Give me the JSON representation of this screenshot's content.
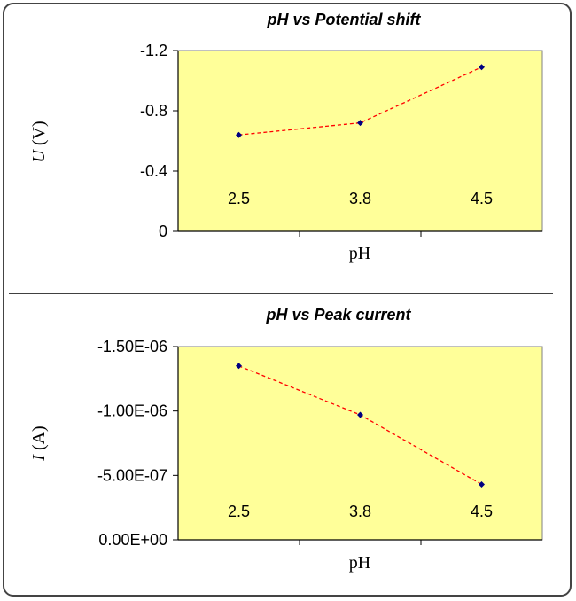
{
  "chart_data": [
    {
      "type": "line",
      "title": "pH vs Potential shift",
      "categories": [
        "2.5",
        "3.8",
        "4.5"
      ],
      "values": [
        -0.64,
        -0.72,
        -1.09
      ],
      "ylabel_symbol": "U",
      "ylabel_unit": " (V)",
      "xlabel": "pH",
      "ylim": [
        0,
        -1.2
      ],
      "y_axis_reversed": true,
      "yticks": [
        "-1.2",
        "-0.8",
        "-0.4",
        "0"
      ],
      "ytick_values": [
        -1.2,
        -0.8,
        -0.4,
        0
      ],
      "grid": false,
      "legend": "none",
      "plot_bg": "#ffff99",
      "line_color": "#ff0000",
      "marker_color": "#000080"
    },
    {
      "type": "line",
      "title": "pH vs Peak current",
      "categories": [
        "2.5",
        "3.8",
        "4.5"
      ],
      "values": [
        -1.35e-06,
        -9.7e-07,
        -4.3e-07
      ],
      "ylabel_symbol": "I",
      "ylabel_unit": " (A)",
      "xlabel": "pH",
      "ylim": [
        0,
        -1.5e-06
      ],
      "y_axis_reversed": true,
      "yticks": [
        "-1.50E-06",
        "-1.00E-06",
        "-5.00E-07",
        "0.00E+00"
      ],
      "ytick_values": [
        -1.5e-06,
        -1e-06,
        -5e-07,
        0
      ],
      "grid": false,
      "legend": "none",
      "plot_bg": "#ffff99",
      "line_color": "#ff0000",
      "marker_color": "#000080"
    }
  ],
  "colors": {
    "divider": "#000000",
    "frame": "#444444"
  }
}
